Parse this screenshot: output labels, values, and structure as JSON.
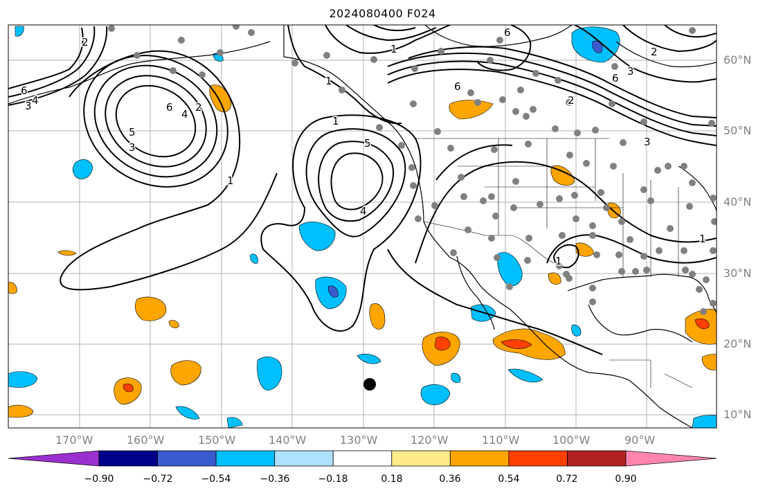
{
  "title": "2024080400 F024",
  "map": {
    "lat_labels": [
      "60°N",
      "50°N",
      "40°N",
      "30°N",
      "20°N",
      "10°N"
    ],
    "lon_labels": [
      "170°W",
      "160°W",
      "150°W",
      "140°W",
      "130°W",
      "120°W",
      "110°W",
      "100°W",
      "90°W"
    ],
    "contour_labels": [
      "6",
      "4",
      "3",
      "2",
      "1",
      "1",
      "6",
      "2",
      "3",
      "5",
      "4",
      "1",
      "1",
      "6",
      "2",
      "3",
      "6",
      "3",
      "2",
      "1",
      "1",
      "4",
      "6",
      "5"
    ]
  },
  "colorbar": {
    "tick_labels": [
      "−0.90",
      "−0.72",
      "−0.54",
      "−0.36",
      "−0.18",
      "0.18",
      "0.36",
      "0.54",
      "0.72",
      "0.90"
    ],
    "colors": [
      "#9b30d0",
      "#00008b",
      "#3a5bd0",
      "#00bfff",
      "#aee0ff",
      "#ffffff",
      "#ffeb8a",
      "#ffa500",
      "#ff4000",
      "#b22222",
      "#ff85ae"
    ]
  },
  "colors": {
    "positive": "#ffa500",
    "positive_strong": "#ff4000",
    "negative": "#00bfff",
    "negative_strong": "#3a5bd0",
    "station": "#808080"
  }
}
